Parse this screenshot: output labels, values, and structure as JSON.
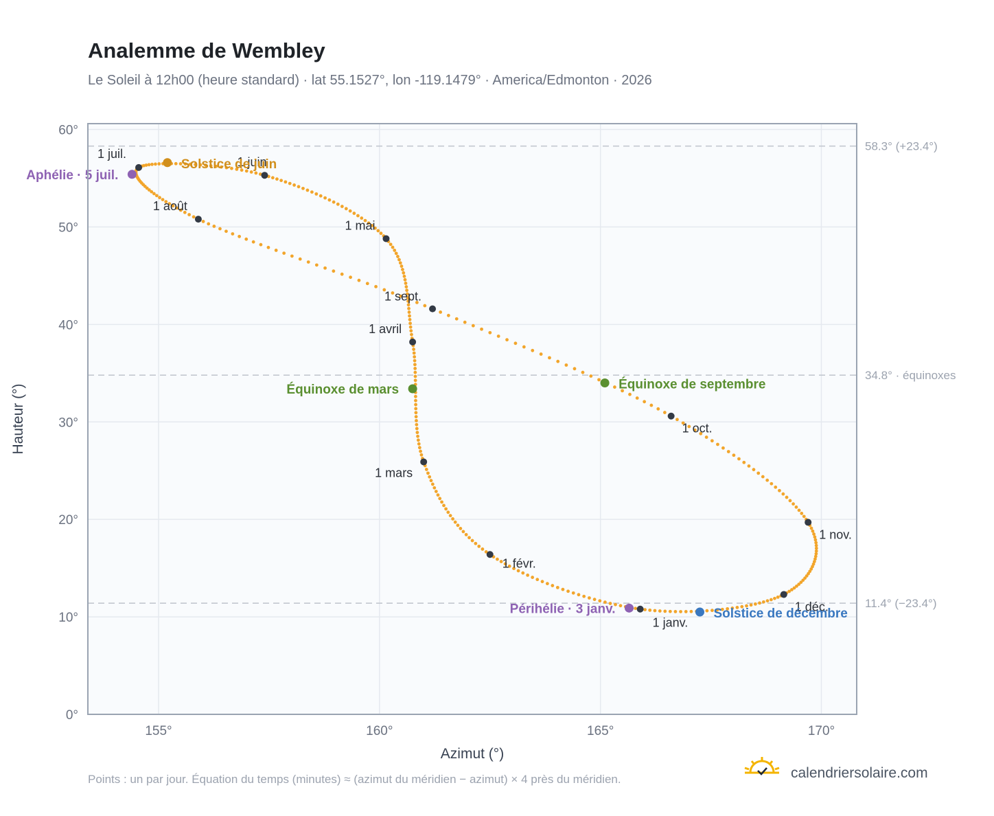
{
  "colors": {
    "curve": "#f2a52b",
    "month_dot": "#333a45",
    "june": "#d18f1c",
    "december": "#3a78c0",
    "equinox": "#5a8f30",
    "apsis": "#8e62b3",
    "grid": "#e5e9ef",
    "plot_bg": "#f9fbfd",
    "frame": "#9aa4b2",
    "ref_line": "#c3c8d0"
  },
  "chart_data": {
    "type": "scatter",
    "title": "Analemme de Wembley",
    "subtitle": "Le Soleil à 12h00 (heure standard) · lat 55.1527°, lon -119.1479° · America/Edmonton · 2026",
    "xlabel": "Azimut (°)",
    "ylabel": "Hauteur (°)",
    "xlim": [
      153.4,
      170.8
    ],
    "ylim": [
      0,
      60.6
    ],
    "x_ticks": [
      155,
      160,
      165,
      170
    ],
    "y_ticks": [
      0,
      10,
      20,
      30,
      40,
      50,
      60
    ],
    "tick_suffix": "°",
    "grid": true,
    "points_per_day": 1,
    "monthly_points": [
      {
        "label": "1 janv.",
        "azimuth": 165.9,
        "altitude": 10.8
      },
      {
        "label": "1 févr.",
        "azimuth": 162.5,
        "altitude": 16.4
      },
      {
        "label": "1 mars",
        "azimuth": 161.0,
        "altitude": 25.9
      },
      {
        "label": "1 avril",
        "azimuth": 160.75,
        "altitude": 38.2
      },
      {
        "label": "1 mai",
        "azimuth": 160.15,
        "altitude": 48.8
      },
      {
        "label": "1 juin",
        "azimuth": 157.4,
        "altitude": 55.3
      },
      {
        "label": "1 juil.",
        "azimuth": 154.55,
        "altitude": 56.1
      },
      {
        "label": "1 août",
        "azimuth": 155.9,
        "altitude": 50.8
      },
      {
        "label": "1 sept.",
        "azimuth": 161.2,
        "altitude": 41.6
      },
      {
        "label": "1 oct.",
        "azimuth": 166.6,
        "altitude": 30.6
      },
      {
        "label": "1 nov.",
        "azimuth": 169.7,
        "altitude": 19.7
      },
      {
        "label": "1 déc.",
        "azimuth": 169.15,
        "altitude": 12.3
      }
    ],
    "events": [
      {
        "label": "Solstice de juin",
        "azimuth": 155.2,
        "altitude": 56.6,
        "color_key": "june"
      },
      {
        "label": "Aphélie · 5 juil.",
        "azimuth": 154.4,
        "altitude": 55.4,
        "color_key": "apsis"
      },
      {
        "label": "Équinoxe de mars",
        "azimuth": 160.75,
        "altitude": 33.4,
        "color_key": "equinox"
      },
      {
        "label": "Équinoxe de septembre",
        "azimuth": 165.1,
        "altitude": 34.0,
        "color_key": "equinox"
      },
      {
        "label": "Périhélie · 3 janv.",
        "azimuth": 165.65,
        "altitude": 10.9,
        "color_key": "apsis"
      },
      {
        "label": "Solstice de décembre",
        "azimuth": 167.25,
        "altitude": 10.5,
        "color_key": "december"
      }
    ],
    "reference_lines": [
      {
        "altitude": 58.3,
        "label": "58.3° (+23.4°)"
      },
      {
        "altitude": 34.8,
        "label": "34.8° · équinoxes"
      },
      {
        "altitude": 11.4,
        "label": "11.4° (−23.4°)"
      }
    ]
  },
  "footer": {
    "note": "Points : un par jour. Équation du temps (minutes) ≈ (azimut du méridien − azimut) × 4 près du méridien.",
    "brand": "calendriersolaire.com",
    "logo_icon": "sun-calendar-icon"
  }
}
